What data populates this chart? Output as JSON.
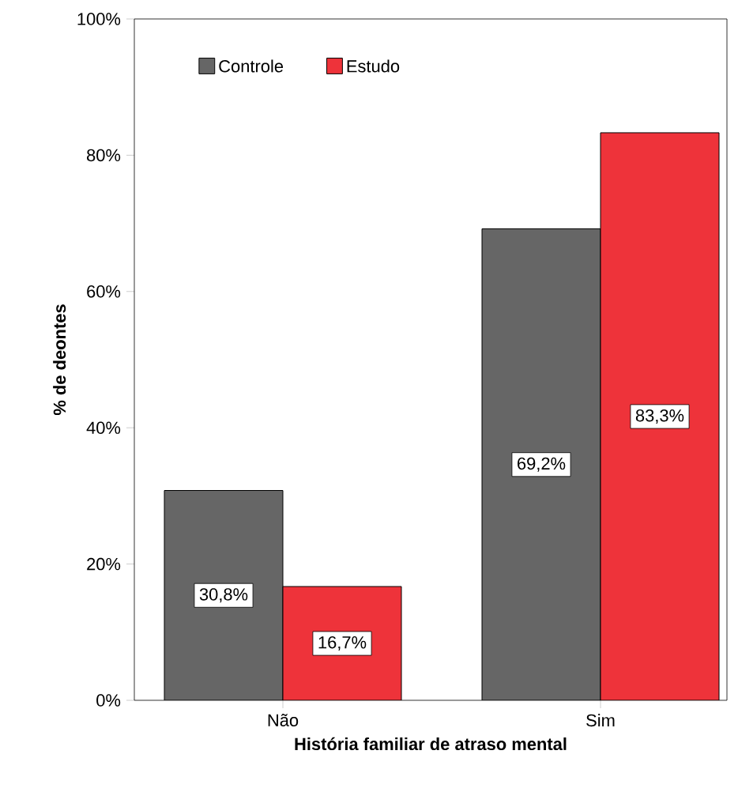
{
  "chart_data": {
    "type": "bar",
    "xlabel": "História familiar de atraso mental",
    "ylabel": "% de deontes",
    "categories": [
      "Não",
      "Sim"
    ],
    "series": [
      {
        "name": "Controle",
        "color": "#666666",
        "values": [
          30.8,
          69.2
        ],
        "value_labels": [
          "30,8%",
          "69,2%"
        ]
      },
      {
        "name": "Estudo",
        "color": "#ee333a",
        "values": [
          16.7,
          83.3
        ],
        "value_labels": [
          "16,7%",
          "83,3%"
        ]
      }
    ],
    "ylim": [
      0,
      100
    ],
    "yticks": [
      {
        "value": 0,
        "label": "0%"
      },
      {
        "value": 20,
        "label": "20%"
      },
      {
        "value": 40,
        "label": "40%"
      },
      {
        "value": 60,
        "label": "60%"
      },
      {
        "value": 80,
        "label": "80%"
      },
      {
        "value": 100,
        "label": "100%"
      }
    ],
    "grid": false,
    "legend": "top left"
  }
}
